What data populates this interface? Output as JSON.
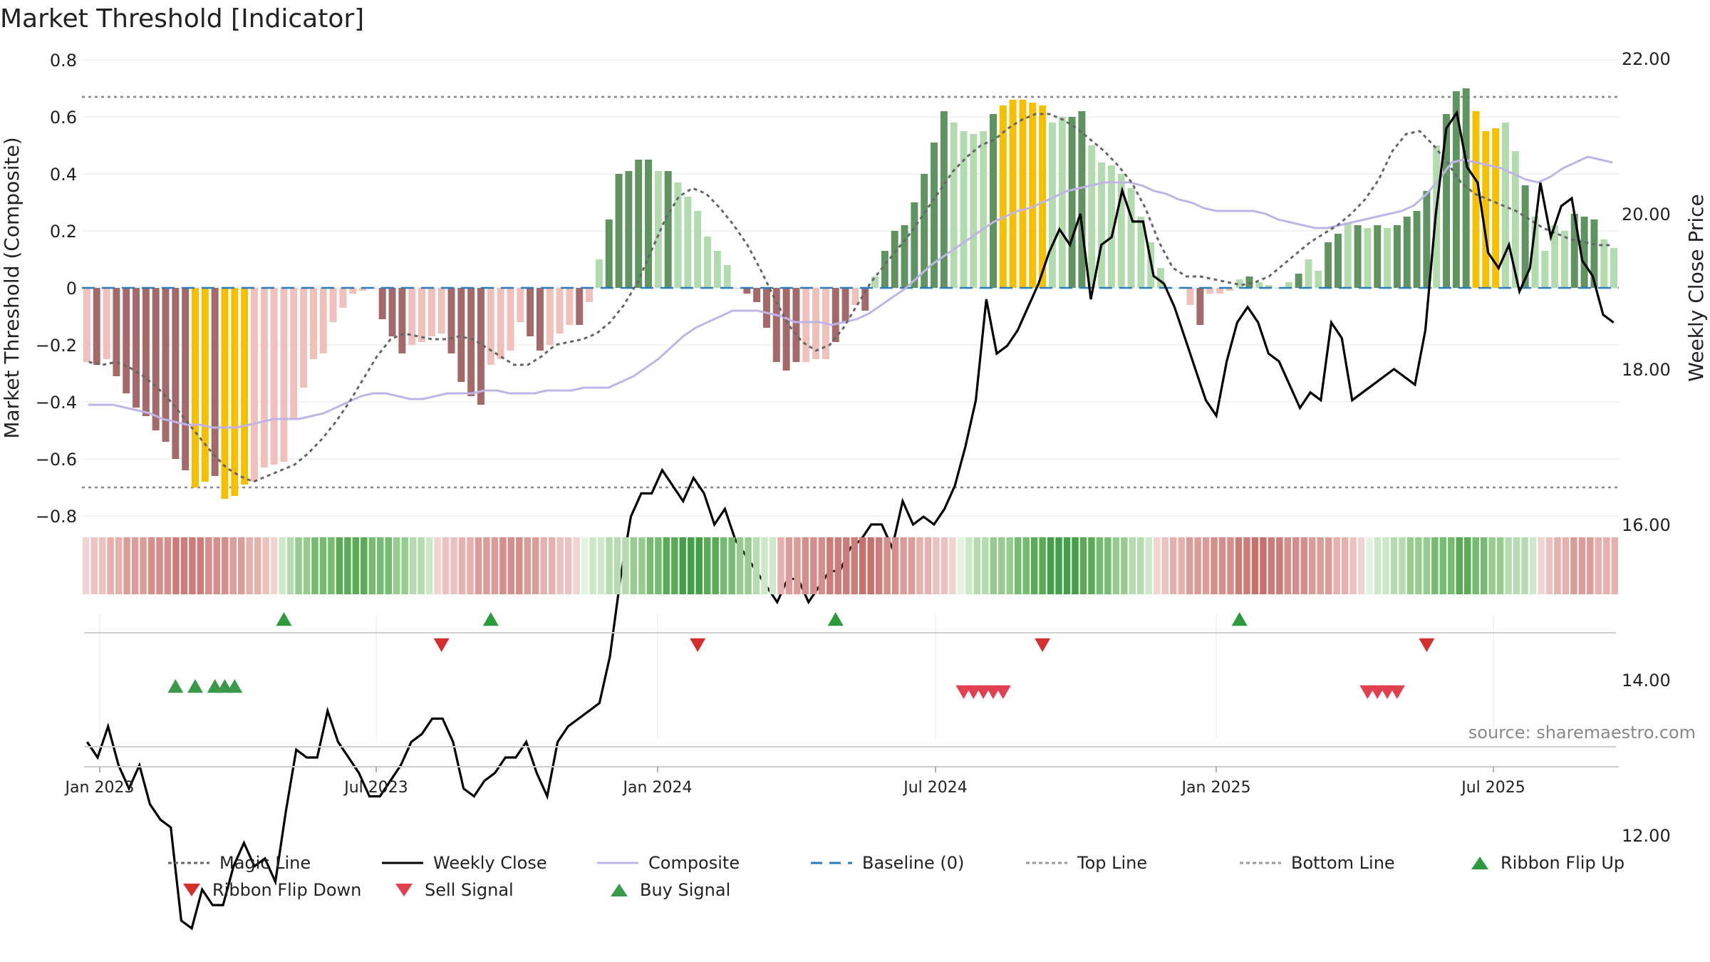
{
  "title": "Market Threshold [Indicator]",
  "source": "source: sharemaestro.com",
  "colors": {
    "red_dark": "#a46a6a",
    "red_light": "#f0c0ba",
    "green_dark": "#5f9461",
    "green_light": "#b2dbae",
    "gold": "#f5c000",
    "close": "#000000",
    "composite": "#c0b4e6",
    "magic": "#666666",
    "baseline": "#2b7bb9",
    "flip_up": "#2e9a3e",
    "flip_down": "#d32f2f",
    "sell": "#e04050",
    "buy": "#3a9a4a"
  },
  "chart_data": {
    "type": "bar",
    "ylabel_left": "Market Threshold (Composite)",
    "ylabel_right": "Weekly Close Price",
    "left_ticks": [
      "0.8",
      "0.6",
      "0.4",
      "0.2",
      "0",
      "−0.2",
      "−0.4",
      "−0.6",
      "−0.8"
    ],
    "right_ticks": [
      "22.00",
      "20.00",
      "18.00",
      "16.00",
      "14.00",
      "12.00"
    ],
    "ylim_left": [
      -0.8,
      0.8
    ],
    "ylim_right": [
      10.5,
      22.0
    ],
    "top_line": 0.67,
    "bottom_line": -0.7,
    "x_ticks": [
      "Jan 2023",
      "Jul 2023",
      "Jan 2024",
      "Jul 2024",
      "Jan 2025",
      "Jul 2025"
    ],
    "composite_bars": [
      -0.26,
      -0.27,
      -0.25,
      -0.31,
      -0.37,
      -0.42,
      -0.45,
      -0.5,
      -0.54,
      -0.6,
      -0.64,
      -0.7,
      -0.68,
      -0.66,
      -0.74,
      -0.73,
      -0.69,
      -0.68,
      -0.63,
      -0.62,
      -0.61,
      -0.46,
      -0.35,
      -0.25,
      -0.23,
      -0.12,
      -0.07,
      -0.02,
      -0.01,
      0,
      -0.11,
      -0.17,
      -0.23,
      -0.2,
      -0.19,
      -0.17,
      -0.16,
      -0.23,
      -0.33,
      -0.38,
      -0.41,
      -0.27,
      -0.25,
      -0.22,
      -0.12,
      -0.17,
      -0.22,
      -0.2,
      -0.16,
      -0.13,
      -0.13,
      -0.05,
      0.1,
      0.24,
      0.4,
      0.41,
      0.45,
      0.45,
      0.41,
      0.41,
      0.37,
      0.32,
      0.27,
      0.18,
      0.13,
      0.08,
      0,
      -0.02,
      -0.05,
      -0.14,
      -0.26,
      -0.29,
      -0.26,
      -0.26,
      -0.25,
      -0.25,
      -0.19,
      -0.12,
      -0.06,
      -0.08,
      0.04,
      0.13,
      0.2,
      0.22,
      0.3,
      0.4,
      0.51,
      0.62,
      0.58,
      0.55,
      0.54,
      0.55,
      0.61,
      0.64,
      0.66,
      0.66,
      0.65,
      0.64,
      0.58,
      0.6,
      0.6,
      0.62,
      0.5,
      0.44,
      0.43,
      0.4,
      0.35,
      0.25,
      0.16,
      0.07,
      0,
      0,
      -0.06,
      -0.13,
      -0.02,
      -0.02,
      -0.01,
      0.03,
      0.04,
      0.02,
      0.01,
      0,
      0.02,
      0.05,
      0.1,
      0.06,
      0.16,
      0.19,
      0.23,
      0.22,
      0.21,
      0.22,
      0.21,
      0.22,
      0.25,
      0.27,
      0.34,
      0.5,
      0.61,
      0.69,
      0.7,
      0.62,
      0.55,
      0.56,
      0.58,
      0.48,
      0.36,
      0.25,
      0.13,
      0.22,
      0.2,
      0.26,
      0.25,
      0.24,
      0.17,
      0.14
    ],
    "bar_color_classes": [
      "rl",
      "rd",
      "rl",
      "rd",
      "rd",
      "rd",
      "rd",
      "rd",
      "rd",
      "rd",
      "rd",
      "g",
      "g",
      "rd",
      "g",
      "g",
      "g",
      "rl",
      "rl",
      "rl",
      "rl",
      "rl",
      "rl",
      "rl",
      "rl",
      "rl",
      "rl",
      "rl",
      "rl",
      "rl",
      "rd",
      "rd",
      "rd",
      "rl",
      "rl",
      "rl",
      "rl",
      "rd",
      "rd",
      "rd",
      "rd",
      "rl",
      "rl",
      "rl",
      "rl",
      "rd",
      "rd",
      "rl",
      "rl",
      "rl",
      "rd",
      "rl",
      "gl",
      "gd",
      "gd",
      "gd",
      "gd",
      "gd",
      "gl",
      "gd",
      "gl",
      "gl",
      "gl",
      "gl",
      "gl",
      "gl",
      "rl",
      "rd",
      "rd",
      "rd",
      "rd",
      "rd",
      "rd",
      "rl",
      "rl",
      "rl",
      "rd",
      "rd",
      "rl",
      "rd",
      "gl",
      "gd",
      "gd",
      "gd",
      "gd",
      "gd",
      "gd",
      "gd",
      "gl",
      "gl",
      "gl",
      "gl",
      "gd",
      "g",
      "g",
      "g",
      "g",
      "g",
      "gl",
      "gl",
      "gd",
      "gd",
      "gl",
      "gl",
      "gl",
      "gl",
      "gl",
      "gl",
      "gl",
      "gl",
      "gl",
      "gl",
      "rl",
      "rd",
      "rl",
      "rl",
      "rl",
      "gl",
      "gd",
      "gl",
      "gl",
      "gl",
      "gl",
      "gd",
      "gl",
      "gl",
      "gd",
      "gd",
      "gl",
      "gd",
      "gl",
      "gd",
      "gl",
      "gd",
      "gd",
      "gd",
      "gd",
      "gl",
      "gd",
      "gd",
      "gd",
      "g",
      "g",
      "g",
      "gl",
      "gl",
      "gd",
      "gl",
      "gl",
      "gl",
      "gl",
      "gd",
      "gd",
      "gd",
      "gl",
      "gl",
      "gl"
    ],
    "weekly_close": [
      13.2,
      13.0,
      13.4,
      12.9,
      12.6,
      12.9,
      12.4,
      12.2,
      12.1,
      10.9,
      10.8,
      11.3,
      11.1,
      11.1,
      11.6,
      11.9,
      11.6,
      11.7,
      11.4,
      12.3,
      13.1,
      13.0,
      13.0,
      13.6,
      13.2,
      13.0,
      12.8,
      12.5,
      12.5,
      12.7,
      12.9,
      13.2,
      13.3,
      13.5,
      13.5,
      13.2,
      12.6,
      12.5,
      12.7,
      12.8,
      13.0,
      13.0,
      13.2,
      12.8,
      12.5,
      13.2,
      13.4,
      13.5,
      13.6,
      13.7,
      14.3,
      15.3,
      16.1,
      16.4,
      16.4,
      16.7,
      16.5,
      16.3,
      16.6,
      16.4,
      16.0,
      16.2,
      15.8,
      15.6,
      15.4,
      15.2,
      15.0,
      15.3,
      15.3,
      15.0,
      15.2,
      15.4,
      15.4,
      15.7,
      15.8,
      16.0,
      16.0,
      15.7,
      16.3,
      16.0,
      16.1,
      16.0,
      16.2,
      16.5,
      17.0,
      17.6,
      18.9,
      18.2,
      18.3,
      18.5,
      18.8,
      19.1,
      19.5,
      19.8,
      19.6,
      20.0,
      18.9,
      19.6,
      19.7,
      20.3,
      19.9,
      19.9,
      19.2,
      19.1,
      18.8,
      18.4,
      18.0,
      17.6,
      17.4,
      18.1,
      18.6,
      18.8,
      18.6,
      18.2,
      18.1,
      17.8,
      17.5,
      17.7,
      17.6,
      18.6,
      18.4,
      17.6,
      17.7,
      17.8,
      17.9,
      18.0,
      17.9,
      17.8,
      18.5,
      20.0,
      21.1,
      21.3,
      20.6,
      20.4,
      19.5,
      19.3,
      19.6,
      19.0,
      19.3,
      20.4,
      19.7,
      20.1,
      20.2,
      19.4,
      19.2,
      18.7,
      18.6
    ],
    "composite_line": [
      -0.41,
      -0.41,
      -0.41,
      -0.42,
      -0.43,
      -0.44,
      -0.46,
      -0.47,
      -0.48,
      -0.48,
      -0.49,
      -0.49,
      -0.49,
      -0.48,
      -0.47,
      -0.46,
      -0.46,
      -0.46,
      -0.45,
      -0.44,
      -0.42,
      -0.4,
      -0.38,
      -0.37,
      -0.37,
      -0.38,
      -0.39,
      -0.39,
      -0.38,
      -0.37,
      -0.37,
      -0.37,
      -0.36,
      -0.36,
      -0.37,
      -0.37,
      -0.37,
      -0.36,
      -0.36,
      -0.36,
      -0.35,
      -0.35,
      -0.35,
      -0.33,
      -0.31,
      -0.28,
      -0.25,
      -0.21,
      -0.17,
      -0.14,
      -0.12,
      -0.1,
      -0.08,
      -0.08,
      -0.08,
      -0.09,
      -0.1,
      -0.12,
      -0.12,
      -0.12,
      -0.13,
      -0.12,
      -0.11,
      -0.09,
      -0.06,
      -0.03,
      0,
      0.04,
      0.08,
      0.11,
      0.14,
      0.17,
      0.2,
      0.23,
      0.25,
      0.27,
      0.28,
      0.3,
      0.32,
      0.34,
      0.35,
      0.36,
      0.37,
      0.37,
      0.37,
      0.36,
      0.34,
      0.33,
      0.31,
      0.3,
      0.28,
      0.27,
      0.27,
      0.27,
      0.27,
      0.26,
      0.24,
      0.23,
      0.22,
      0.21,
      0.21,
      0.22,
      0.23,
      0.24,
      0.25,
      0.26,
      0.27,
      0.29,
      0.33,
      0.38,
      0.44,
      0.45,
      0.44,
      0.43,
      0.42,
      0.4,
      0.38,
      0.37,
      0.39,
      0.42,
      0.44,
      0.46,
      0.45,
      0.44
    ],
    "magic_line": [
      -0.26,
      -0.27,
      -0.26,
      -0.28,
      -0.31,
      -0.35,
      -0.4,
      -0.46,
      -0.52,
      -0.58,
      -0.63,
      -0.66,
      -0.68,
      -0.66,
      -0.64,
      -0.62,
      -0.58,
      -0.53,
      -0.47,
      -0.4,
      -0.32,
      -0.24,
      -0.18,
      -0.16,
      -0.17,
      -0.18,
      -0.18,
      -0.17,
      -0.18,
      -0.21,
      -0.24,
      -0.27,
      -0.27,
      -0.24,
      -0.2,
      -0.19,
      -0.18,
      -0.16,
      -0.12,
      -0.06,
      0.02,
      0.13,
      0.24,
      0.32,
      0.35,
      0.33,
      0.28,
      0.22,
      0.15,
      0.06,
      -0.04,
      -0.13,
      -0.19,
      -0.22,
      -0.2,
      -0.14,
      -0.06,
      0.02,
      0.08,
      0.14,
      0.2,
      0.27,
      0.34,
      0.41,
      0.46,
      0.5,
      0.52,
      0.56,
      0.59,
      0.61,
      0.61,
      0.59,
      0.56,
      0.52,
      0.48,
      0.43,
      0.37,
      0.28,
      0.16,
      0.07,
      0.04,
      0.04,
      0.03,
      0.02,
      0.01,
      0.02,
      0.04,
      0.08,
      0.12,
      0.16,
      0.19,
      0.22,
      0.26,
      0.31,
      0.38,
      0.48,
      0.54,
      0.55,
      0.5,
      0.44,
      0.37,
      0.33,
      0.31,
      0.29,
      0.27,
      0.24,
      0.21,
      0.19,
      0.17,
      0.16,
      0.15,
      0.15
    ]
  },
  "ribbon": {
    "colors": [
      "#f0d4d2",
      "#ecc2be",
      "#e6b0ac",
      "#dc9c98",
      "#d58e8a",
      "#cd7c78",
      "#c8706c",
      "#e4f2e2",
      "#cde8c9",
      "#b4dcae",
      "#96cd8f",
      "#76bc70",
      "#5aab56",
      "#42a048"
    ],
    "indices": [
      0,
      1,
      1,
      2,
      2,
      3,
      3,
      3,
      4,
      4,
      4,
      5,
      5,
      5,
      5,
      4,
      4,
      4,
      3,
      3,
      2,
      2,
      1,
      0,
      8,
      9,
      10,
      10,
      11,
      11,
      11,
      12,
      12,
      12,
      12,
      11,
      11,
      11,
      10,
      10,
      9,
      9,
      8,
      0,
      1,
      1,
      2,
      2,
      3,
      3,
      3,
      4,
      4,
      4,
      3,
      3,
      2,
      2,
      1,
      1,
      0,
      7,
      8,
      8,
      9,
      9,
      9,
      10,
      10,
      11,
      11,
      12,
      12,
      13,
      13,
      13,
      12,
      12,
      11,
      11,
      10,
      10,
      9,
      8,
      8,
      2,
      3,
      3,
      4,
      4,
      4,
      5,
      5,
      5,
      5,
      6,
      6,
      5,
      4,
      4,
      3,
      3,
      2,
      2,
      1,
      1,
      0,
      7,
      8,
      9,
      9,
      10,
      10,
      10,
      11,
      11,
      12,
      12,
      13,
      13,
      13,
      13,
      12,
      12,
      11,
      11,
      10,
      10,
      9,
      9,
      8,
      0,
      1,
      2,
      2,
      3,
      3,
      3,
      4,
      4,
      4,
      5,
      5,
      6,
      6,
      5,
      5,
      4,
      4,
      4,
      3,
      3,
      3,
      2,
      2,
      1,
      0,
      7,
      8,
      8,
      9,
      9,
      10,
      10,
      10,
      11,
      11,
      11,
      12,
      12,
      11,
      11,
      10,
      10,
      9,
      9,
      9,
      8,
      0,
      1,
      2,
      2,
      3,
      3,
      3,
      2,
      2,
      2
    ],
    "flips_up": [
      20,
      41,
      76,
      117
    ],
    "flips_down": [
      36,
      62,
      97,
      136
    ],
    "buy_signals": [
      9,
      11,
      13,
      14,
      15
    ],
    "sell_signals": [
      89,
      90,
      91,
      92,
      93,
      130,
      131,
      132,
      133
    ]
  },
  "legend": [
    {
      "label": "Magic Line",
      "kind": "dotted",
      "color": "#666666"
    },
    {
      "label": "Weekly Close",
      "kind": "solid",
      "color": "#000000"
    },
    {
      "label": "Composite",
      "kind": "solid",
      "color": "#c0b4e6"
    },
    {
      "label": "Baseline (0)",
      "kind": "dashed",
      "color": "#2b7bb9"
    },
    {
      "label": "Top Line",
      "kind": "dotted",
      "color": "#999999"
    },
    {
      "label": "Bottom Line",
      "kind": "dotted",
      "color": "#999999"
    },
    {
      "label": "Ribbon Flip Up",
      "kind": "tri-up",
      "color": "#2e9a3e"
    },
    {
      "label": "Ribbon Flip Down",
      "kind": "tri-down",
      "color": "#d32f2f"
    },
    {
      "label": "Sell Signal",
      "kind": "tri-down",
      "color": "#e04050"
    },
    {
      "label": "Buy Signal",
      "kind": "tri-up",
      "color": "#3a9a4a"
    }
  ]
}
